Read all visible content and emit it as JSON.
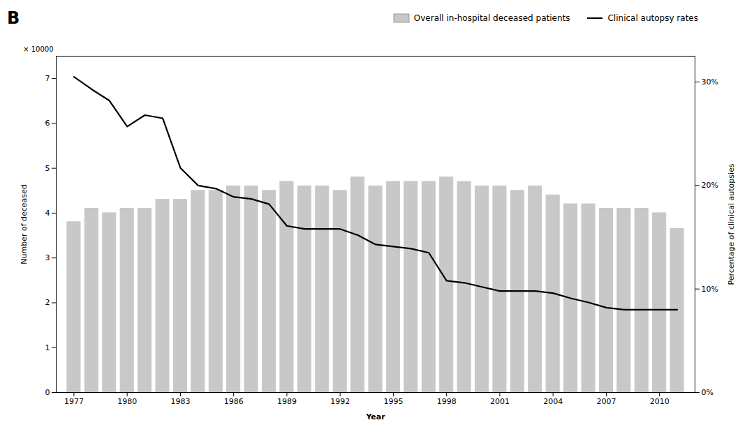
{
  "chart_data": {
    "type": "bar",
    "annotations": [
      "B",
      "× 10000"
    ],
    "xlabel": "Year",
    "ylabel": "Number of deceased",
    "y2label": "Percentage of clinical autopsies",
    "x": [
      1977,
      1978,
      1979,
      1980,
      1981,
      1982,
      1983,
      1984,
      1985,
      1986,
      1987,
      1988,
      1989,
      1990,
      1991,
      1992,
      1993,
      1994,
      1995,
      1996,
      1997,
      1998,
      1999,
      2000,
      2001,
      2002,
      2003,
      2004,
      2005,
      2006,
      2007,
      2008,
      2009,
      2010,
      2011
    ],
    "xlim": [
      1976.0,
      2012.0
    ],
    "xticks": [
      1977,
      1980,
      1983,
      1986,
      1989,
      1992,
      1995,
      1998,
      2001,
      2004,
      2007,
      2010
    ],
    "ylim": [
      0,
      7.5
    ],
    "yticks": [
      0,
      1,
      2,
      3,
      4,
      5,
      6,
      7
    ],
    "y2lim": [
      0,
      0.325
    ],
    "y2ticks": [
      {
        "value": 0.0,
        "label": "0%"
      },
      {
        "value": 0.1,
        "label": "10%"
      },
      {
        "value": 0.2,
        "label": "20%"
      },
      {
        "value": 0.3,
        "label": "30%"
      }
    ],
    "series": [
      {
        "name": "Overall in-hospital deceased patients",
        "type": "bar",
        "color": "#c8c8c8",
        "values": [
          3.8,
          4.1,
          4.0,
          4.1,
          4.1,
          4.3,
          4.3,
          4.5,
          4.5,
          4.6,
          4.6,
          4.5,
          4.7,
          4.6,
          4.6,
          4.5,
          4.8,
          4.6,
          4.7,
          4.7,
          4.7,
          4.8,
          4.7,
          4.6,
          4.6,
          4.5,
          4.6,
          4.4,
          4.2,
          4.2,
          4.1,
          4.1,
          4.1,
          4.0,
          3.65
        ]
      },
      {
        "name": "Clinical autopsy rates",
        "type": "line",
        "color": "#000000",
        "axis": "y2",
        "values": [
          0.305,
          0.293,
          0.282,
          0.257,
          0.268,
          0.265,
          0.217,
          0.2,
          0.197,
          0.189,
          0.187,
          0.182,
          0.161,
          0.158,
          0.158,
          0.158,
          0.152,
          0.143,
          0.141,
          0.139,
          0.135,
          0.108,
          0.106,
          0.102,
          0.098,
          0.098,
          0.098,
          0.096,
          0.091,
          0.087,
          0.082,
          0.08,
          0.08,
          0.08,
          0.08
        ]
      }
    ],
    "legend": "upper right",
    "grid": false
  }
}
